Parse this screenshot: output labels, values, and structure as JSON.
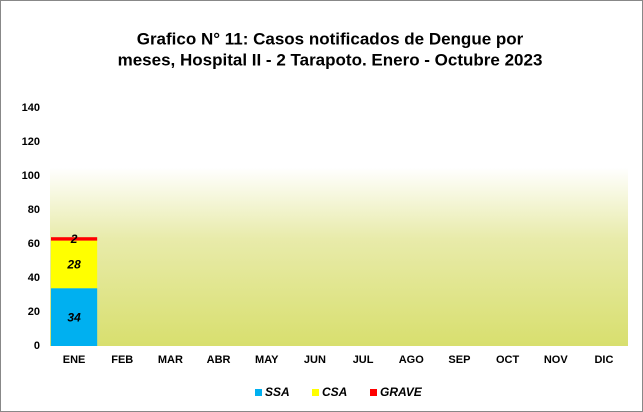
{
  "chart_data": {
    "type": "stacked_bar",
    "title": "Grafico N° 11: Casos notificados de Dengue por",
    "subtitle": "meses, Hospital II - 2 Tarapoto. Enero - Octubre 2023",
    "categories": [
      "ENE",
      "FEB",
      "MAR",
      "ABR",
      "MAY",
      "JUN",
      "JUL",
      "AGO",
      "SEP",
      "OCT",
      "NOV",
      "DIC"
    ],
    "series": [
      {
        "name": "SSA",
        "color": "#00b0f0",
        "values": [
          34,
          null,
          null,
          null,
          null,
          null,
          null,
          null,
          null,
          null,
          null,
          null
        ]
      },
      {
        "name": "CSA",
        "color": "#ffff00",
        "values": [
          28,
          null,
          null,
          null,
          null,
          null,
          null,
          null,
          null,
          null,
          null,
          null
        ]
      },
      {
        "name": "GRAVE",
        "color": "#ff0000",
        "values": [
          2,
          null,
          null,
          null,
          null,
          null,
          null,
          null,
          null,
          null,
          null,
          null
        ]
      }
    ],
    "ylim": [
      0,
      140
    ],
    "yticks": [
      0,
      20,
      40,
      60,
      80,
      100,
      120,
      140
    ],
    "grid": false,
    "legend": "bottom"
  }
}
